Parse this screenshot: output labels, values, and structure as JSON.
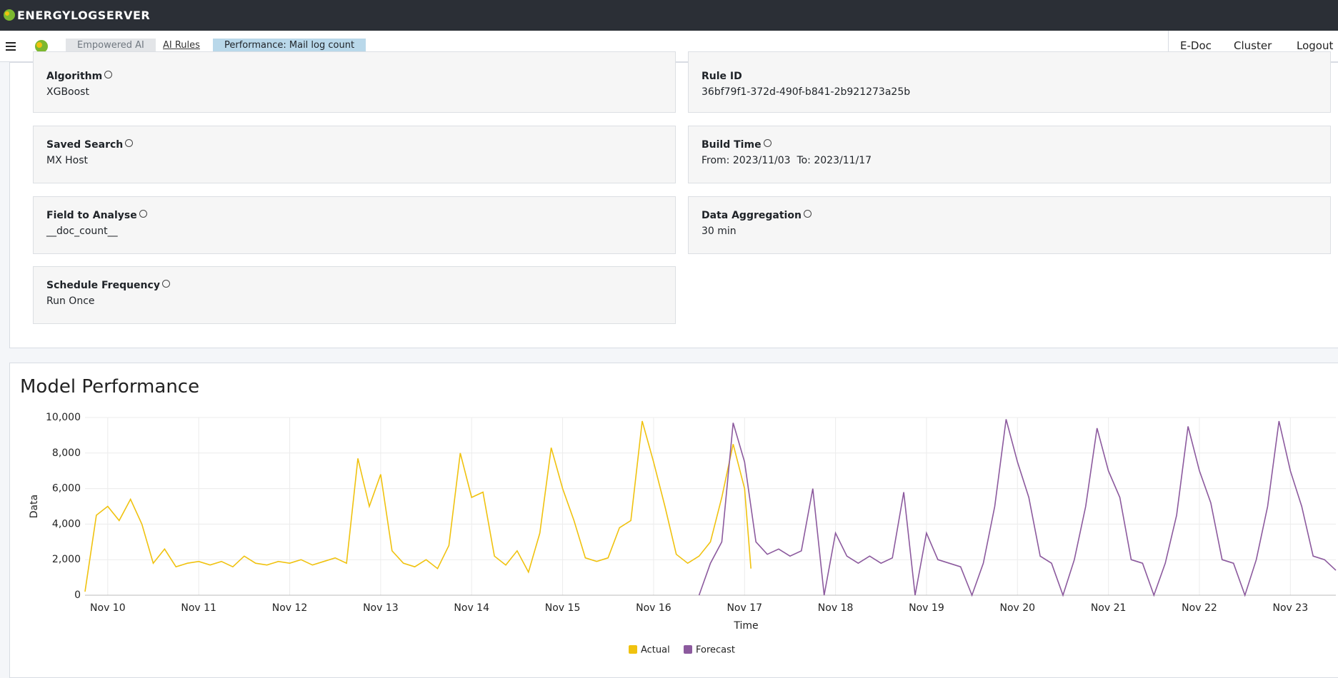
{
  "header": {
    "logo": "ENERGYLOGSERVER"
  },
  "breadcrumbs": [
    "Empowered AI",
    "AI Rules",
    "Performance: Mail log count"
  ],
  "nav": [
    "E-Doc",
    "Cluster",
    "Logout"
  ],
  "fields": [
    {
      "label": "Algorithm",
      "value": "XGBoost"
    },
    {
      "label": "Rule ID",
      "value": "36bf79f1-372d-490f-b841-2b921273a25b"
    },
    {
      "label": "Saved Search",
      "value": "MX Host"
    },
    {
      "label": "Build Time",
      "value": "From: 2023/11/03  To: 2023/11/17"
    },
    {
      "label": "Field to Analyse",
      "value": "__doc_count__"
    },
    {
      "label": "Data Aggregation",
      "value": "30 min"
    },
    {
      "label": "Schedule Frequency",
      "value": "Run Once"
    }
  ],
  "chart_data": {
    "type": "line",
    "title": "Model Performance",
    "xlabel": "Time",
    "ylabel": "Data",
    "xlim": [
      -0.25,
      13.5
    ],
    "ylim": [
      0,
      10000
    ],
    "xticks": [
      {
        "value": 0,
        "label": "Nov 10"
      },
      {
        "value": 1,
        "label": "Nov 11"
      },
      {
        "value": 2,
        "label": "Nov 12"
      },
      {
        "value": 3,
        "label": "Nov 13"
      },
      {
        "value": 4,
        "label": "Nov 14"
      },
      {
        "value": 5,
        "label": "Nov 15"
      },
      {
        "value": 6,
        "label": "Nov 16"
      },
      {
        "value": 7,
        "label": "Nov 17"
      },
      {
        "value": 8,
        "label": "Nov 18"
      },
      {
        "value": 9,
        "label": "Nov 19"
      },
      {
        "value": 10,
        "label": "Nov 20"
      },
      {
        "value": 11,
        "label": "Nov 21"
      },
      {
        "value": 12,
        "label": "Nov 22"
      },
      {
        "value": 13,
        "label": "Nov 23"
      }
    ],
    "yticks": [
      0,
      {
        "value": 2000,
        "label": "2,000"
      },
      {
        "value": 4000,
        "label": "4,000"
      },
      {
        "value": 6000,
        "label": "6,000"
      },
      {
        "value": 8000,
        "label": "8,000"
      },
      {
        "value": 10000,
        "label": "10,000"
      }
    ],
    "grid": true,
    "legend": "bottom",
    "series": [
      {
        "name": "Actual",
        "color": "#f0c20f",
        "x": [
          -0.25,
          -0.125,
          0,
          0.125,
          0.25,
          0.375,
          0.5,
          0.625,
          0.75,
          0.875,
          1,
          1.125,
          1.25,
          1.375,
          1.5,
          1.625,
          1.75,
          1.875,
          2,
          2.125,
          2.25,
          2.375,
          2.5,
          2.625,
          2.75,
          2.875,
          3,
          3.125,
          3.25,
          3.375,
          3.5,
          3.625,
          3.75,
          3.875,
          4,
          4.125,
          4.25,
          4.375,
          4.5,
          4.625,
          4.75,
          4.875,
          5,
          5.125,
          5.25,
          5.375,
          5.5,
          5.625,
          5.75,
          5.875,
          6,
          6.125,
          6.25,
          6.375,
          6.5,
          6.625,
          6.75,
          6.875,
          7,
          7.07
        ],
        "values": [
          200,
          4500,
          5000,
          4200,
          5400,
          4000,
          1800,
          2600,
          1600,
          1800,
          1900,
          1700,
          1900,
          1600,
          2200,
          1800,
          1700,
          1900,
          1800,
          2000,
          1700,
          1900,
          2100,
          1800,
          7700,
          5000,
          6800,
          2500,
          1800,
          1600,
          2000,
          1500,
          2800,
          8000,
          5500,
          5800,
          2200,
          1700,
          2500,
          1300,
          3500,
          8300,
          6000,
          4200,
          2100,
          1900,
          2100,
          3800,
          4200,
          9800,
          7500,
          5000,
          2300,
          1800,
          2200,
          3000,
          5500,
          8500,
          6000,
          1500
        ]
      },
      {
        "name": "Forecast",
        "color": "#8c5a9e",
        "x": [
          6.5,
          6.625,
          6.75,
          6.875,
          7,
          7.125,
          7.25,
          7.375,
          7.5,
          7.625,
          7.75,
          7.875,
          8,
          8.125,
          8.25,
          8.375,
          8.5,
          8.625,
          8.75,
          8.875,
          9,
          9.125,
          9.25,
          9.375,
          9.5,
          9.625,
          9.75,
          9.875,
          10,
          10.125,
          10.25,
          10.375,
          10.5,
          10.625,
          10.75,
          10.875,
          11,
          11.125,
          11.25,
          11.375,
          11.5,
          11.625,
          11.75,
          11.875,
          12,
          12.125,
          12.25,
          12.375,
          12.5,
          12.625,
          12.75,
          12.875,
          13,
          13.125,
          13.25,
          13.375,
          13.5
        ],
        "values": [
          0,
          1800,
          3000,
          9700,
          7500,
          3000,
          2300,
          2600,
          2200,
          2500,
          6000,
          0,
          3500,
          2200,
          1800,
          2200,
          1800,
          2100,
          5800,
          0,
          3500,
          2000,
          1800,
          1600,
          0,
          1800,
          5000,
          9900,
          7500,
          5500,
          2200,
          1800,
          0,
          2000,
          5000,
          9400,
          7000,
          5500,
          2000,
          1800,
          0,
          1800,
          4500,
          9500,
          7000,
          5200,
          2000,
          1800,
          0,
          2000,
          5000,
          9800,
          7000,
          5000,
          2200,
          2000,
          1400
        ]
      }
    ]
  }
}
